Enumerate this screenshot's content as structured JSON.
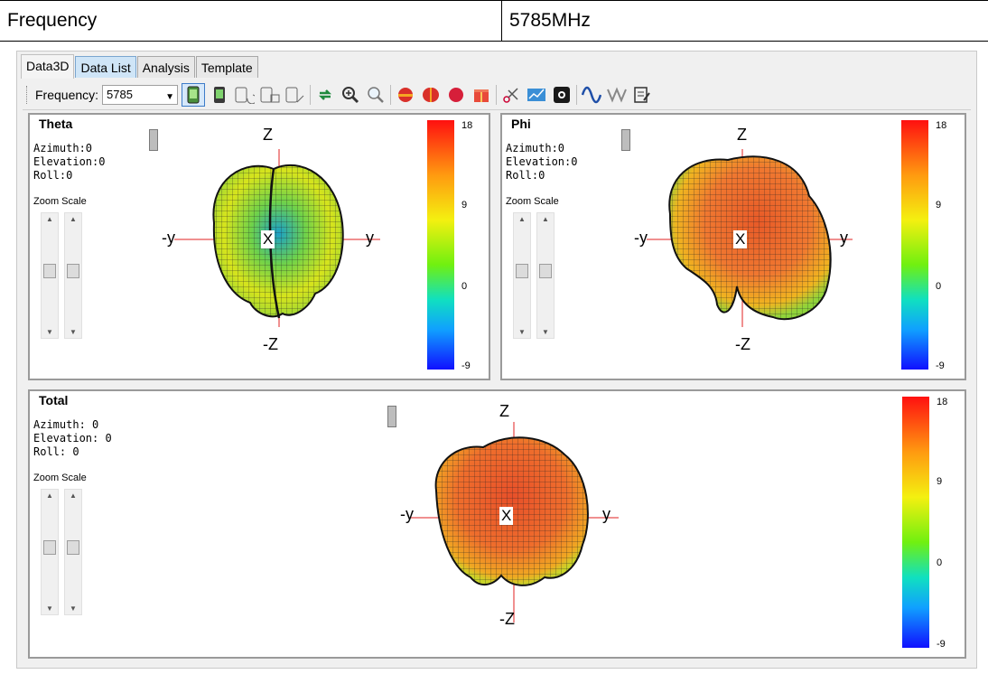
{
  "header_table": {
    "label": "Frequency",
    "value": "5785MHz"
  },
  "tabs": [
    "Data3D",
    "Data List",
    "Analysis",
    "Template"
  ],
  "toolbar": {
    "frequency_label": "Frequency:",
    "frequency_value": "5785",
    "icons": [
      "phone-green-icon",
      "phone-icon",
      "rotate-phone-icon",
      "phone-export-icon",
      "phone-edit-icon",
      "refresh-icon",
      "zoom-in-icon",
      "zoom-out-icon",
      "hemisphere-icon",
      "split-sphere-icon",
      "sphere-icon",
      "gift-box-icon",
      "scissors-icon",
      "chart-board-icon",
      "settings-icon",
      "sine-wave-icon",
      "zigzag-icon",
      "notes-icon"
    ]
  },
  "panels": {
    "theta": {
      "title": "Theta",
      "azimuth": "Azimuth:0",
      "elevation": "Elevation:0",
      "roll": "Roll:0",
      "zoom_scale": "Zoom Scale"
    },
    "phi": {
      "title": "Phi",
      "azimuth": "Azimuth:0",
      "elevation": "Elevation:0",
      "roll": "Roll:0",
      "zoom_scale": "Zoom Scale"
    },
    "total": {
      "title": "Total",
      "azimuth": "Azimuth: 0",
      "elevation": "Elevation: 0",
      "roll": "Roll: 0",
      "zoom_scale": "Zoom Scale"
    }
  },
  "axes": {
    "z": "Z",
    "neg_z": "-Z",
    "y": "y",
    "neg_y": "-y",
    "x": "X"
  },
  "colorbar": {
    "max": "18",
    "mid": "9",
    "zero": "0",
    "min": "-9"
  },
  "colors": {
    "accent_tab": "#cfe5f7",
    "pattern_hot": "#e8562a",
    "pattern_warm": "#f0a020",
    "pattern_cool": "#7cd040"
  }
}
